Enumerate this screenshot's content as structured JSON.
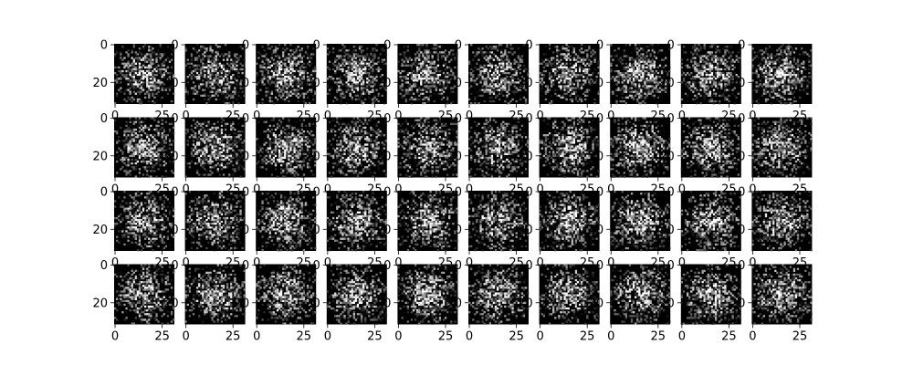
{
  "chart_data": {
    "type": "heatmap",
    "layout": {
      "rows": 4,
      "cols": 10
    },
    "image_size": [
      32,
      32
    ],
    "colormap": "gray",
    "background": "#000000",
    "x_ticks": [
      0,
      25
    ],
    "y_ticks": [
      0,
      20
    ],
    "x_tick_labels": [
      "0",
      "25"
    ],
    "y_tick_labels": [
      "0",
      "20"
    ],
    "clipped_tick_label_fragments": {
      "x": "250",
      "y": "20"
    },
    "title": "",
    "xlabel": "",
    "ylabel": "",
    "grid": false,
    "legend": "none"
  }
}
